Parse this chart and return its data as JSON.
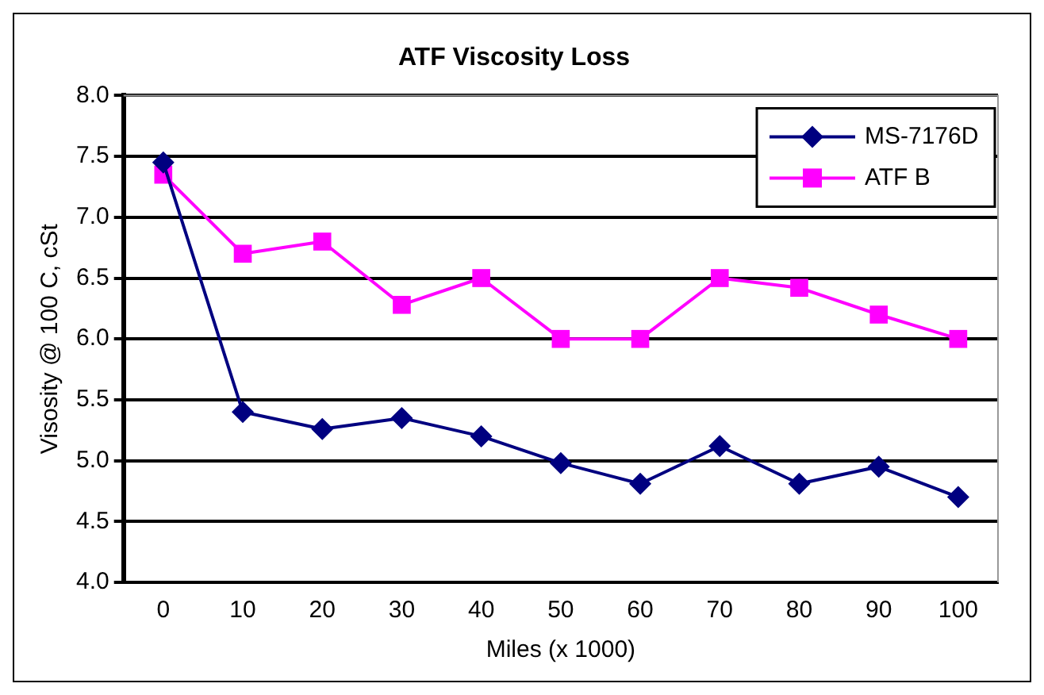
{
  "chart_data": {
    "type": "line",
    "title": "ATF Viscosity Loss",
    "xlabel": "Miles (x 1000)",
    "ylabel": "Visosity @ 100 C, cSt",
    "categories": [
      "0",
      "10",
      "20",
      "30",
      "40",
      "50",
      "60",
      "70",
      "80",
      "90",
      "100"
    ],
    "series": [
      {
        "name": "MS-7176D",
        "color": "#000080",
        "marker": "diamond",
        "values": [
          7.45,
          5.4,
          5.26,
          5.35,
          5.2,
          4.98,
          4.81,
          5.12,
          4.81,
          4.95,
          4.7
        ]
      },
      {
        "name": "ATF B",
        "color": "#ff00ff",
        "marker": "square",
        "values": [
          7.35,
          6.7,
          6.8,
          6.28,
          6.5,
          6.0,
          6.0,
          6.5,
          6.42,
          6.2,
          6.0
        ]
      }
    ],
    "ylim": [
      4.0,
      8.0
    ],
    "yticks": [
      {
        "value": 4,
        "label": "4.0"
      },
      4.5,
      {
        "value": 5,
        "label": "5.0"
      },
      5.5,
      {
        "value": 6,
        "label": "6.0"
      },
      6.5,
      {
        "value": 7,
        "label": "7.0"
      },
      7.5,
      {
        "value": 8,
        "label": "8.0"
      }
    ],
    "grid": "y",
    "legend": "top right"
  }
}
